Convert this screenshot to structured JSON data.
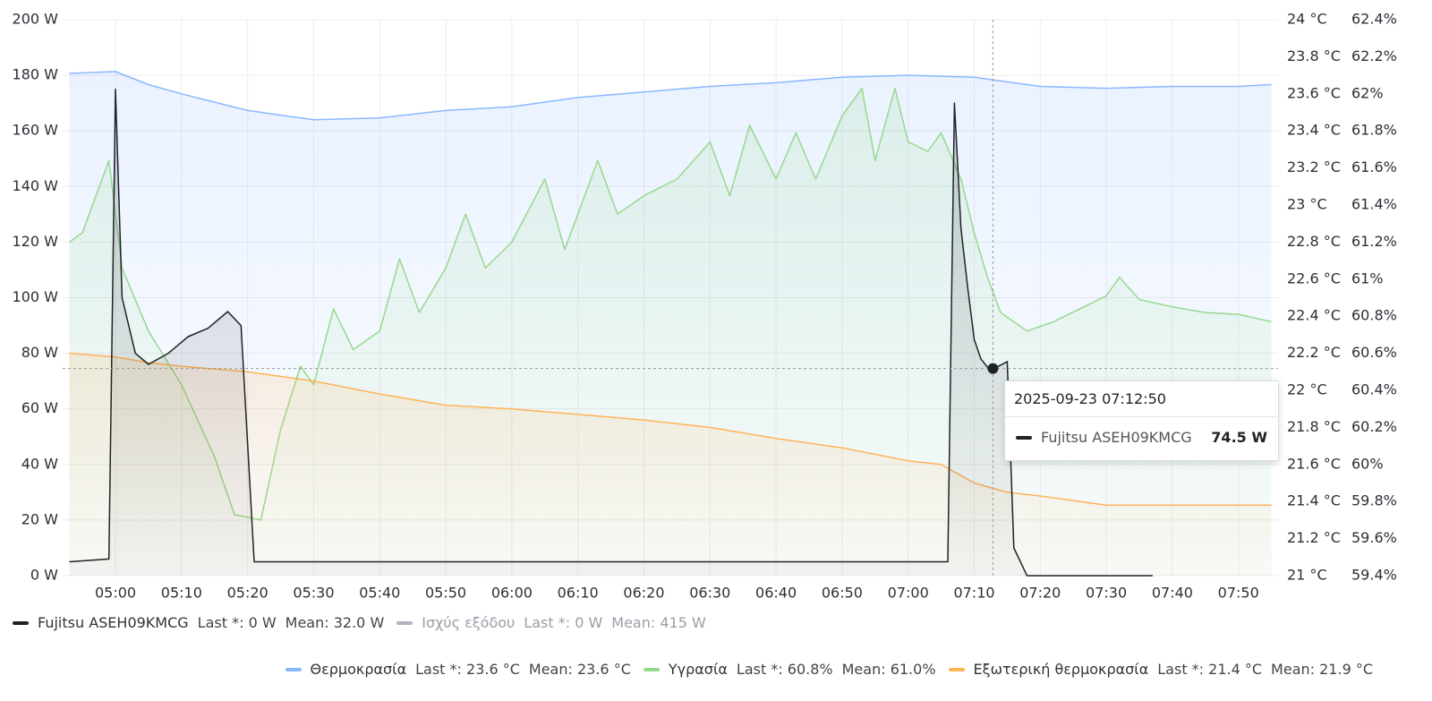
{
  "chart_data": {
    "type": "line",
    "xlim": [
      "04:52",
      "07:56"
    ],
    "xticks": [
      "05:00",
      "05:10",
      "05:20",
      "05:30",
      "05:40",
      "05:50",
      "06:00",
      "06:10",
      "06:20",
      "06:30",
      "06:40",
      "06:50",
      "07:00",
      "07:10",
      "07:20",
      "07:30",
      "07:40",
      "07:50"
    ],
    "ylim": [
      0,
      200
    ],
    "yticks": [
      {
        "value": 0,
        "label": "0 W"
      },
      {
        "value": 20,
        "label": "20 W"
      },
      {
        "value": 40,
        "label": "40 W"
      },
      {
        "value": 60,
        "label": "60 W"
      },
      {
        "value": 80,
        "label": "80 W"
      },
      {
        "value": 100,
        "label": "100 W"
      },
      {
        "value": 120,
        "label": "120 W"
      },
      {
        "value": 140,
        "label": "140 W"
      },
      {
        "value": 160,
        "label": "160 W"
      },
      {
        "value": 180,
        "label": "180 W"
      },
      {
        "value": 200,
        "label": "200 W"
      }
    ],
    "y2lim": [
      21,
      24
    ],
    "y2ticks": [
      {
        "value": 21,
        "label": "21 °C"
      },
      {
        "value": 21.2,
        "label": "21.2 °C"
      },
      {
        "value": 21.4,
        "label": "21.4 °C"
      },
      {
        "value": 21.6,
        "label": "21.6 °C"
      },
      {
        "value": 21.8,
        "label": "21.8 °C"
      },
      {
        "value": 22,
        "label": "22 °C"
      },
      {
        "value": 22.2,
        "label": "22.2 °C"
      },
      {
        "value": 22.4,
        "label": "22.4 °C"
      },
      {
        "value": 22.6,
        "label": "22.6 °C"
      },
      {
        "value": 22.8,
        "label": "22.8 °C"
      },
      {
        "value": 23,
        "label": "23 °C"
      },
      {
        "value": 23.2,
        "label": "23.2 °C"
      },
      {
        "value": 23.4,
        "label": "23.4 °C"
      },
      {
        "value": 23.6,
        "label": "23.6 °C"
      },
      {
        "value": 23.8,
        "label": "23.8 °C"
      },
      {
        "value": 24,
        "label": "24 °C"
      }
    ],
    "y3lim": [
      59.4,
      62.4
    ],
    "y3ticks": [
      {
        "value": 59.4,
        "label": "59.4%"
      },
      {
        "value": 59.6,
        "label": "59.6%"
      },
      {
        "value": 59.8,
        "label": "59.8%"
      },
      {
        "value": 60,
        "label": "60%"
      },
      {
        "value": 60.2,
        "label": "60.2%"
      },
      {
        "value": 60.4,
        "label": "60.4%"
      },
      {
        "value": 60.6,
        "label": "60.6%"
      },
      {
        "value": 60.8,
        "label": "60.8%"
      },
      {
        "value": 61,
        "label": "61%"
      },
      {
        "value": 61.2,
        "label": "61.2%"
      },
      {
        "value": 61.4,
        "label": "61.4%"
      },
      {
        "value": 61.6,
        "label": "61.6%"
      },
      {
        "value": 61.8,
        "label": "61.8%"
      },
      {
        "value": 62,
        "label": "62%"
      },
      {
        "value": 62.2,
        "label": "62.2%"
      },
      {
        "value": 62.4,
        "label": "62.4%"
      }
    ],
    "grid": true,
    "series": [
      {
        "name": "Fujitsu ASEH09KMCG",
        "color": "#202226",
        "axis": "y",
        "stats": [
          "Last *: 0 W",
          "Mean: 32.0 W"
        ],
        "x": [
          "04:53",
          "04:59",
          "05:00",
          "05:01",
          "05:03",
          "05:05",
          "05:08",
          "05:11",
          "05:14",
          "05:17",
          "05:19",
          "05:21",
          "05:30",
          "05:40",
          "05:50",
          "06:00",
          "06:10",
          "06:20",
          "06:30",
          "06:40",
          "06:50",
          "07:00",
          "07:06",
          "07:07",
          "07:08",
          "07:09",
          "07:10",
          "07:11",
          "07:12",
          "07:13",
          "07:15",
          "07:16",
          "07:18",
          "07:37"
        ],
        "values": [
          5,
          6,
          175,
          100,
          80,
          76,
          80,
          86,
          89,
          95,
          90,
          5,
          5,
          5,
          5,
          5,
          5,
          5,
          5,
          5,
          5,
          5,
          5,
          170,
          125,
          104,
          85,
          78,
          75,
          74.5,
          77,
          10,
          0,
          0
        ]
      },
      {
        "name": "Ισχύς εξόδου",
        "color": "#b0b3c0",
        "axis": "y",
        "hidden": true,
        "stats": [
          "Last *: 0 W",
          "Mean: 415 W"
        ],
        "x": [],
        "values": []
      },
      {
        "name": "Θερμοκρασία",
        "color": "#8ab8ff",
        "axis": "y2",
        "stats": [
          "Last *: 23.6 °C",
          "Mean: 23.6 °C"
        ],
        "x": [
          "04:53",
          "05:00",
          "05:05",
          "05:10",
          "05:20",
          "05:30",
          "05:40",
          "05:50",
          "06:00",
          "06:10",
          "06:20",
          "06:30",
          "06:40",
          "06:50",
          "07:00",
          "07:10",
          "07:20",
          "07:30",
          "07:40",
          "07:50",
          "07:55"
        ],
        "values": [
          23.71,
          23.72,
          23.65,
          23.6,
          23.51,
          23.46,
          23.47,
          23.51,
          23.53,
          23.58,
          23.61,
          23.64,
          23.66,
          23.69,
          23.7,
          23.69,
          23.64,
          23.63,
          23.64,
          23.64,
          23.65
        ]
      },
      {
        "name": "Υγρασία",
        "color": "#96d98d",
        "axis": "y3",
        "stats": [
          "Last *: 60.8%",
          "Mean: 61.0%"
        ],
        "x": [
          "04:53",
          "04:55",
          "04:59",
          "05:01",
          "05:05",
          "05:10",
          "05:15",
          "05:18",
          "05:22",
          "05:25",
          "05:28",
          "05:30",
          "05:33",
          "05:36",
          "05:40",
          "05:43",
          "05:46",
          "05:50",
          "05:53",
          "05:56",
          "06:00",
          "06:05",
          "06:08",
          "06:10",
          "06:13",
          "06:16",
          "06:20",
          "06:25",
          "06:30",
          "06:33",
          "06:36",
          "06:40",
          "06:43",
          "06:46",
          "06:50",
          "06:53",
          "06:55",
          "06:58",
          "07:00",
          "07:03",
          "07:05",
          "07:08",
          "07:10",
          "07:12",
          "07:14",
          "07:18",
          "07:22",
          "07:26",
          "07:30",
          "07:32",
          "07:35",
          "07:40",
          "07:45",
          "07:50",
          "07:55"
        ],
        "values": [
          61.2,
          61.25,
          61.64,
          61.06,
          60.72,
          60.43,
          60.04,
          59.73,
          59.7,
          60.19,
          60.53,
          60.43,
          60.84,
          60.62,
          60.72,
          61.11,
          60.82,
          61.06,
          61.35,
          61.06,
          61.2,
          61.54,
          61.16,
          61.35,
          61.64,
          61.35,
          61.45,
          61.54,
          61.74,
          61.45,
          61.83,
          61.54,
          61.79,
          61.54,
          61.88,
          62.03,
          61.64,
          62.03,
          61.74,
          61.69,
          61.79,
          61.54,
          61.25,
          61.01,
          60.82,
          60.72,
          60.77,
          60.84,
          60.91,
          61.01,
          60.89,
          60.85,
          60.82,
          60.81,
          60.77
        ]
      },
      {
        "name": "Εξωτερική θερμοκρασία",
        "color": "#ffb357",
        "axis": "y2",
        "stats": [
          "Last *: 21.4 °C",
          "Mean: 21.9 °C"
        ],
        "x": [
          "04:53",
          "05:00",
          "05:05",
          "05:10",
          "05:20",
          "05:30",
          "05:40",
          "05:50",
          "06:00",
          "06:10",
          "06:20",
          "06:30",
          "06:40",
          "06:50",
          "07:00",
          "07:05",
          "07:10",
          "07:15",
          "07:20",
          "07:30",
          "07:40",
          "07:50",
          "07:55"
        ],
        "values": [
          22.2,
          22.18,
          22.15,
          22.13,
          22.1,
          22.05,
          21.98,
          21.92,
          21.9,
          21.87,
          21.84,
          21.8,
          21.74,
          21.69,
          21.62,
          21.6,
          21.5,
          21.45,
          21.43,
          21.38,
          21.38,
          21.38,
          21.38
        ]
      }
    ],
    "tooltip": {
      "time": "2025-09-23 07:12:50",
      "series": "Fujitsu ASEH09KMCG",
      "value": 74.5,
      "value_label": "74.5 W"
    }
  }
}
